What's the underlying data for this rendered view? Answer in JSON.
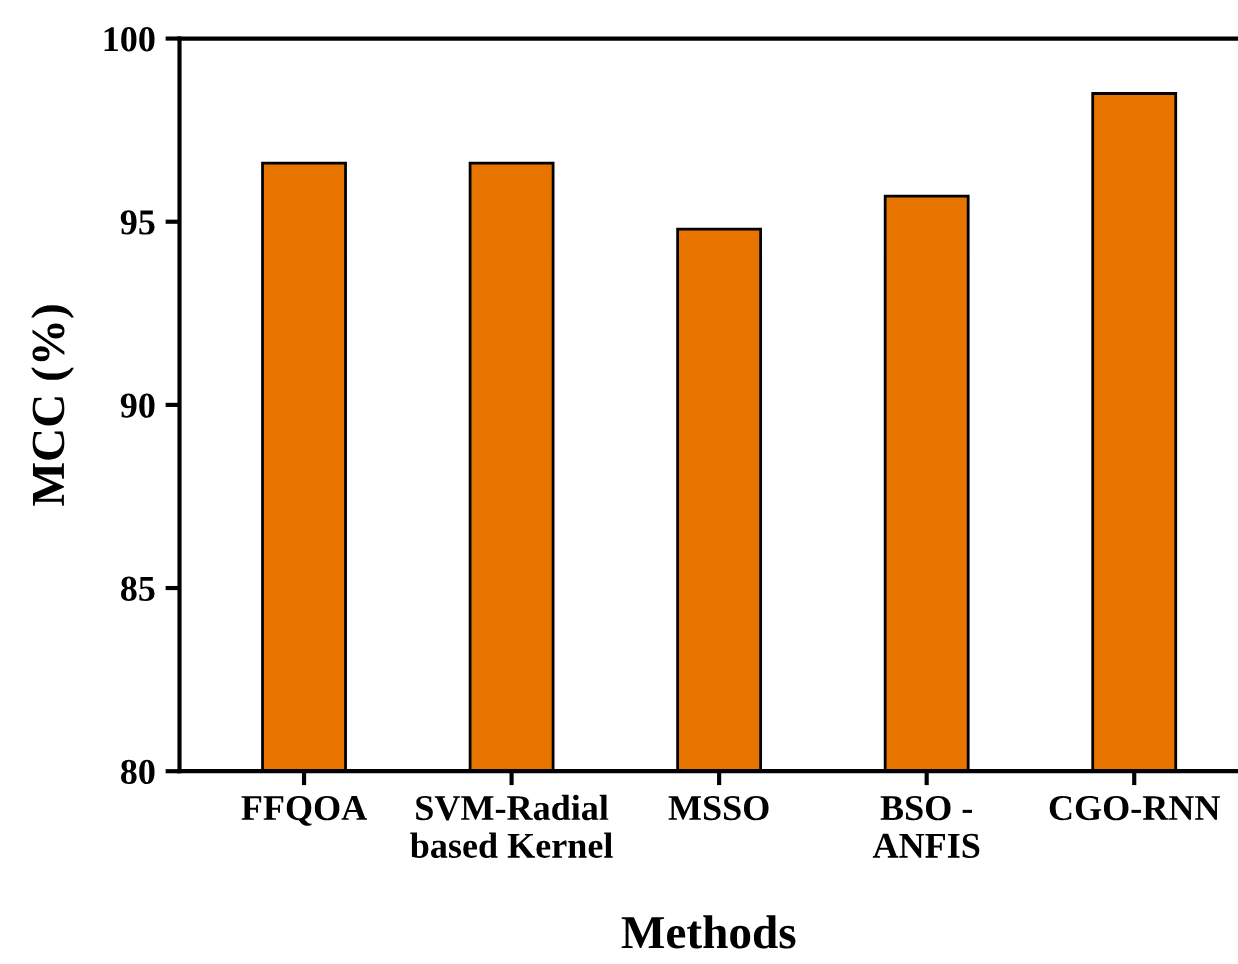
{
  "chart_data": {
    "type": "bar",
    "xlabel": "Methods",
    "ylabel": "MCC (%)",
    "categories": [
      "FFQOA",
      "SVM-Radial\nbased Kernel",
      "MSSO",
      "BSO -\nANFIS",
      "CGO-RNN"
    ],
    "values": [
      96.6,
      96.6,
      94.8,
      95.7,
      98.5
    ],
    "color": "#e87400",
    "ylim": [
      80,
      100
    ],
    "yticks": [
      80,
      85,
      90,
      95,
      100
    ],
    "grid": false,
    "legend": false
  }
}
